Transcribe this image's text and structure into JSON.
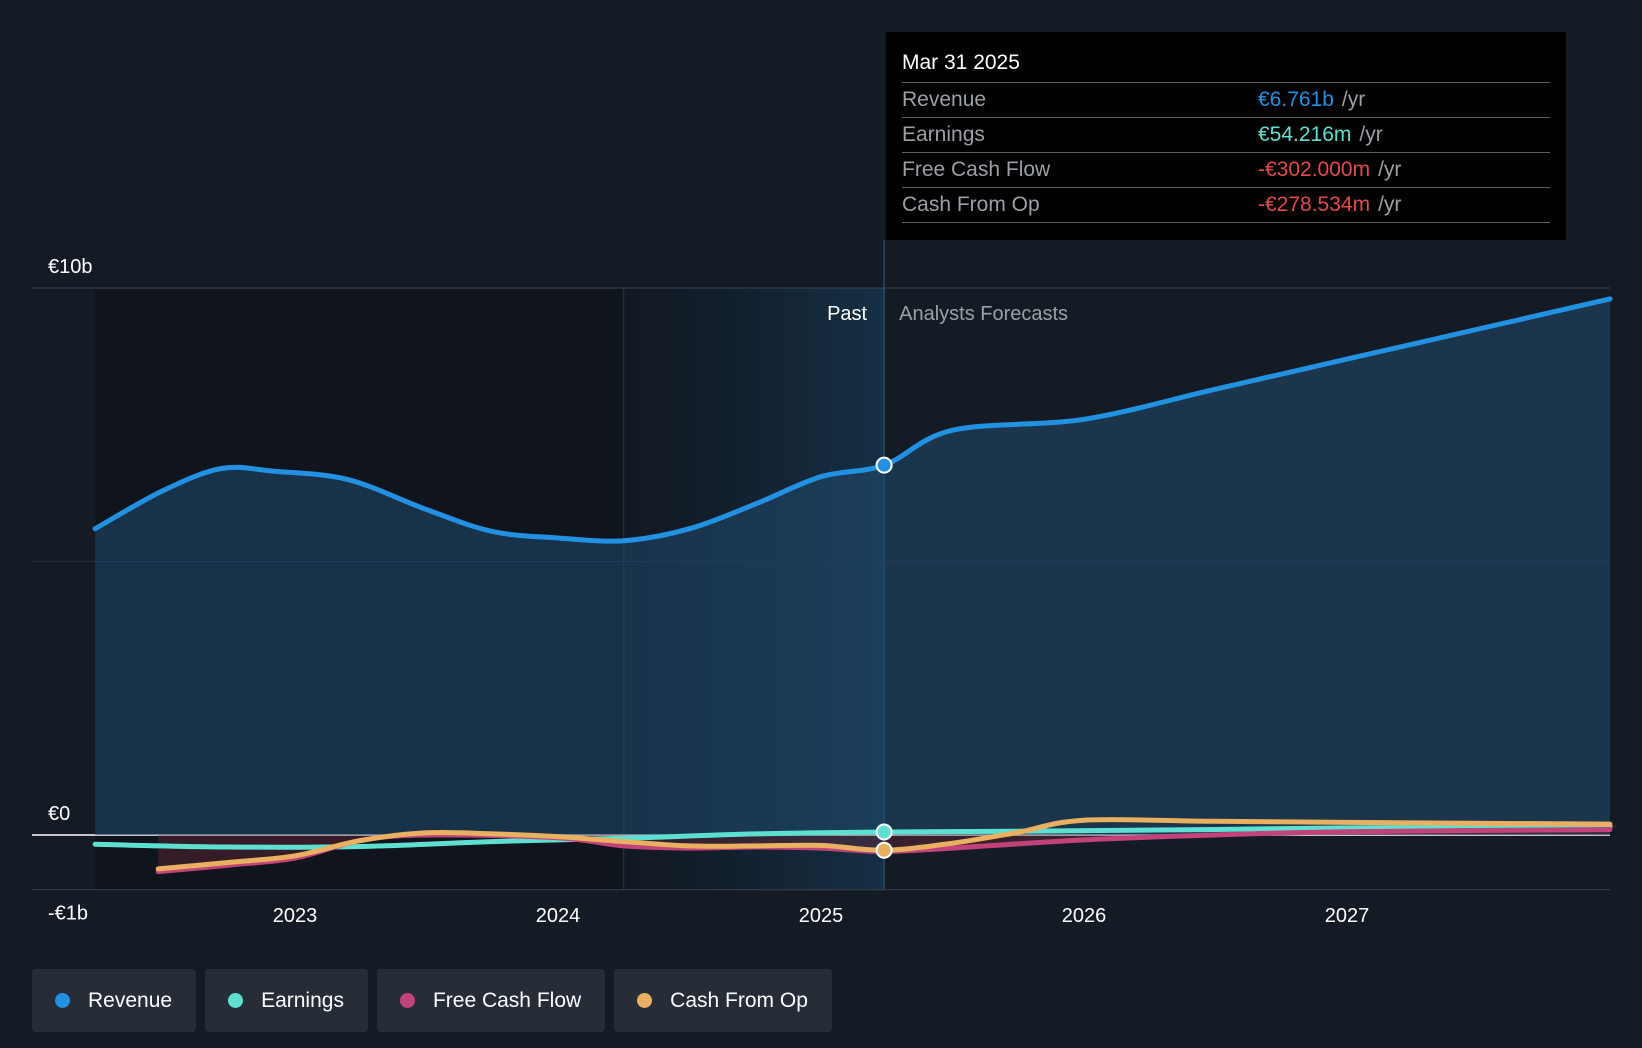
{
  "chart_data": {
    "type": "area",
    "y_tick_labels": [
      "€10b",
      "€0",
      "-€1b"
    ],
    "x_tick_labels": [
      "2023",
      "2024",
      "2025",
      "2026",
      "2027"
    ],
    "ylim": [
      -1,
      10
    ],
    "past_label": "Past",
    "forecast_label": "Analysts Forecasts",
    "grid": true,
    "series": [
      {
        "name": "Revenue",
        "color": "#2391e2",
        "points": [
          [
            2022.24,
            5.6
          ],
          [
            2022.5,
            6.3
          ],
          [
            2022.72,
            6.7
          ],
          [
            2022.92,
            6.65
          ],
          [
            2023.2,
            6.5
          ],
          [
            2023.5,
            5.95
          ],
          [
            2023.75,
            5.55
          ],
          [
            2024.0,
            5.43
          ],
          [
            2024.25,
            5.38
          ],
          [
            2024.5,
            5.6
          ],
          [
            2024.75,
            6.05
          ],
          [
            2025.0,
            6.55
          ],
          [
            2025.24,
            6.761
          ],
          [
            2025.5,
            7.4
          ],
          [
            2026.0,
            7.6
          ],
          [
            2026.5,
            8.15
          ],
          [
            2027.0,
            8.7
          ],
          [
            2027.5,
            9.25
          ],
          [
            2028.0,
            9.8
          ]
        ]
      },
      {
        "name": "Earnings",
        "color": "#5ee0d0",
        "points": [
          [
            2022.24,
            -0.17
          ],
          [
            2022.75,
            -0.22
          ],
          [
            2023.25,
            -0.21
          ],
          [
            2023.75,
            -0.12
          ],
          [
            2024.25,
            -0.06
          ],
          [
            2024.75,
            0.02
          ],
          [
            2025.24,
            0.054
          ],
          [
            2025.75,
            0.07
          ],
          [
            2026.5,
            0.1
          ],
          [
            2027.0,
            0.13
          ],
          [
            2028.0,
            0.15
          ]
        ]
      },
      {
        "name": "Free Cash Flow",
        "color": "#c2427a",
        "points": [
          [
            2022.48,
            -0.67
          ],
          [
            2022.75,
            -0.55
          ],
          [
            2023.0,
            -0.42
          ],
          [
            2023.25,
            -0.1
          ],
          [
            2023.5,
            0.0
          ],
          [
            2024.0,
            -0.05
          ],
          [
            2024.25,
            -0.2
          ],
          [
            2024.5,
            -0.24
          ],
          [
            2024.75,
            -0.22
          ],
          [
            2025.0,
            -0.24
          ],
          [
            2025.24,
            -0.302
          ],
          [
            2025.5,
            -0.24
          ],
          [
            2026.0,
            -0.09
          ],
          [
            2026.5,
            0.0
          ],
          [
            2027.0,
            0.06
          ],
          [
            2028.0,
            0.1
          ]
        ]
      },
      {
        "name": "Cash From Op",
        "color": "#e8b060",
        "points": [
          [
            2022.48,
            -0.62
          ],
          [
            2022.75,
            -0.5
          ],
          [
            2023.0,
            -0.38
          ],
          [
            2023.25,
            -0.1
          ],
          [
            2023.5,
            0.04
          ],
          [
            2023.75,
            0.02
          ],
          [
            2024.0,
            -0.03
          ],
          [
            2024.25,
            -0.12
          ],
          [
            2024.5,
            -0.2
          ],
          [
            2024.75,
            -0.2
          ],
          [
            2025.0,
            -0.19
          ],
          [
            2025.24,
            -0.278534
          ],
          [
            2025.5,
            -0.15
          ],
          [
            2025.75,
            0.05
          ],
          [
            2026.0,
            0.27
          ],
          [
            2026.5,
            0.25
          ],
          [
            2027.0,
            0.23
          ],
          [
            2028.0,
            0.2
          ]
        ]
      }
    ]
  },
  "tooltip": {
    "date": "Mar 31 2025",
    "rows": [
      {
        "label": "Revenue",
        "value": "€6.761b",
        "unit": "/yr",
        "color": "#2391e2"
      },
      {
        "label": "Earnings",
        "value": "€54.216m",
        "unit": "/yr",
        "color": "#5ee0d0"
      },
      {
        "label": "Free Cash Flow",
        "value": "-€302.000m",
        "unit": "/yr",
        "color": "#e34b4b"
      },
      {
        "label": "Cash From Op",
        "value": "-€278.534m",
        "unit": "/yr",
        "color": "#e34b4b"
      }
    ]
  },
  "legend": [
    {
      "label": "Revenue",
      "color": "#2391e2"
    },
    {
      "label": "Earnings",
      "color": "#5ee0d0"
    },
    {
      "label": "Free Cash Flow",
      "color": "#c2427a"
    },
    {
      "label": "Cash From Op",
      "color": "#e8b060"
    }
  ]
}
